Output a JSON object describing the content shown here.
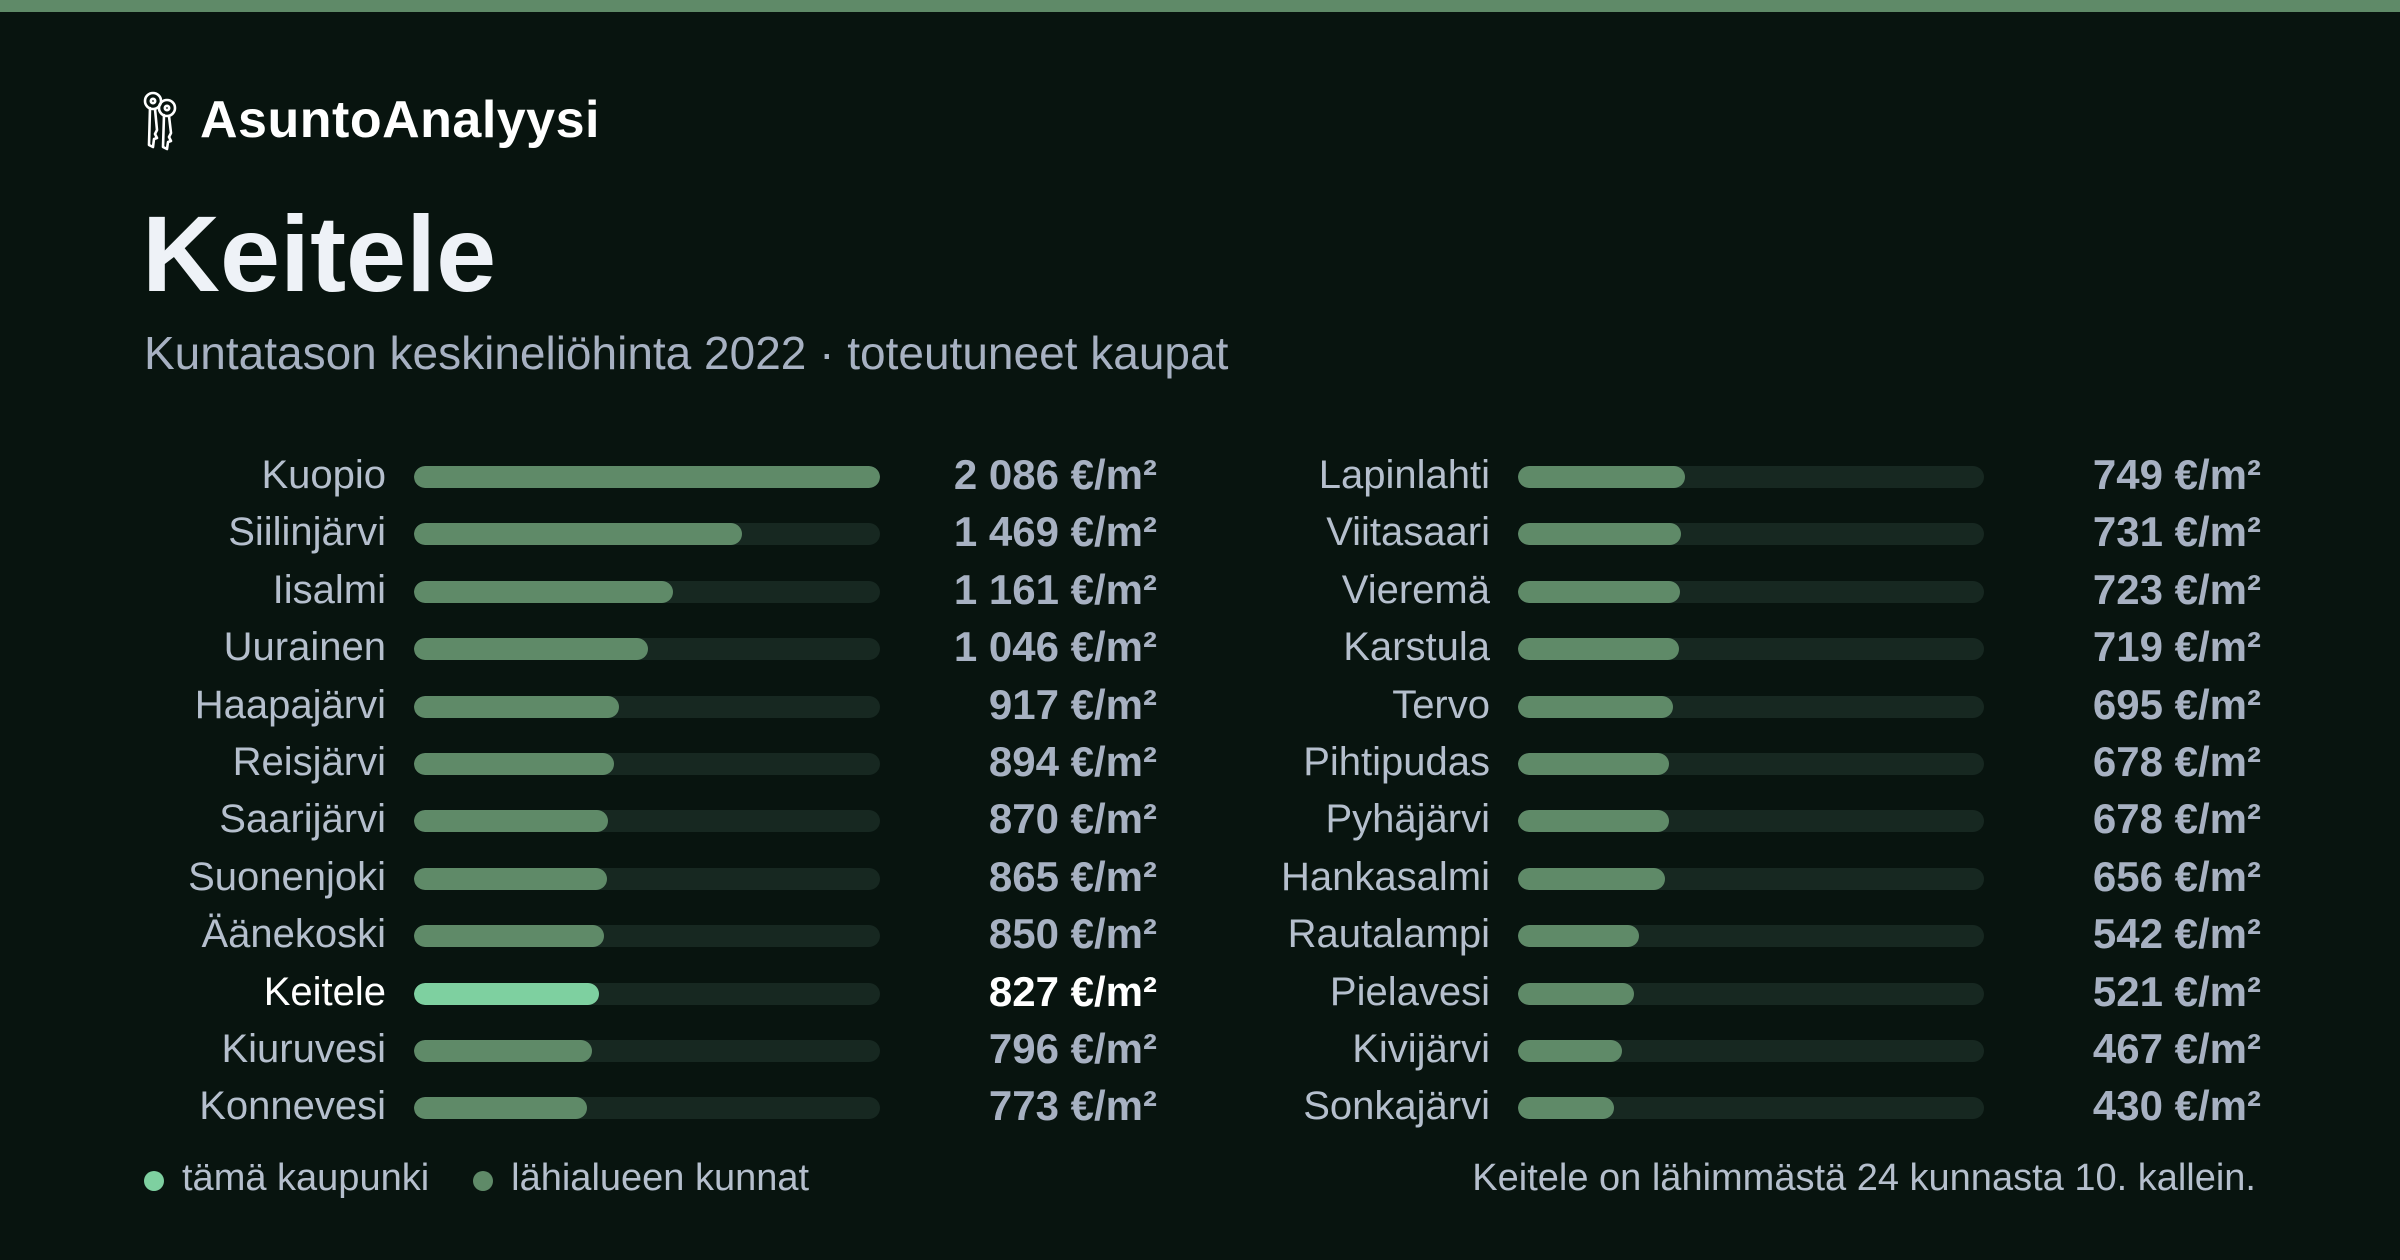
{
  "brand": {
    "name": "AsuntoAnalyysi",
    "icon": "keys-icon"
  },
  "title": "Keitele",
  "subtitle": "Kuntatason keskineliöhinta 2022 · toteutuneet kaupat",
  "legend": {
    "this_city": "tämä kaupunki",
    "neighbors": "lähialueen kunnat"
  },
  "footnote": "Keitele on lähimmästä 24 kunnasta 10. kallein.",
  "colors": {
    "background": "#08140f",
    "accent_bar": "#5f8a68",
    "highlight": "#7ed0a0",
    "track": "#172821",
    "text": "#b5bfcd"
  },
  "chart_data": {
    "type": "bar",
    "orientation": "horizontal",
    "unit": "€/m²",
    "highlight": "Keitele",
    "max": 2086,
    "columns": 2,
    "categories": [
      "Kuopio",
      "Siilinjärvi",
      "Iisalmi",
      "Uurainen",
      "Haapajärvi",
      "Reisjärvi",
      "Saarijärvi",
      "Suonenjoki",
      "Äänekoski",
      "Keitele",
      "Kiuruvesi",
      "Konnevesi",
      "Lapinlahti",
      "Viitasaari",
      "Vieremä",
      "Karstula",
      "Tervo",
      "Pihtipudas",
      "Pyhäjärvi",
      "Hankasalmi",
      "Rautalampi",
      "Pielavesi",
      "Kivijärvi",
      "Sonkajärvi"
    ],
    "values": [
      2086,
      1469,
      1161,
      1046,
      917,
      894,
      870,
      865,
      850,
      827,
      796,
      773,
      749,
      731,
      723,
      719,
      695,
      678,
      678,
      656,
      542,
      521,
      467,
      430
    ],
    "value_labels": [
      "2 086 €/m²",
      "1 469 €/m²",
      "1 161 €/m²",
      "1 046 €/m²",
      "917 €/m²",
      "894 €/m²",
      "870 €/m²",
      "865 €/m²",
      "850 €/m²",
      "827 €/m²",
      "796 €/m²",
      "773 €/m²",
      "749 €/m²",
      "731 €/m²",
      "723 €/m²",
      "719 €/m²",
      "695 €/m²",
      "678 €/m²",
      "678 €/m²",
      "656 €/m²",
      "542 €/m²",
      "521 €/m²",
      "467 €/m²",
      "430 €/m²"
    ]
  }
}
